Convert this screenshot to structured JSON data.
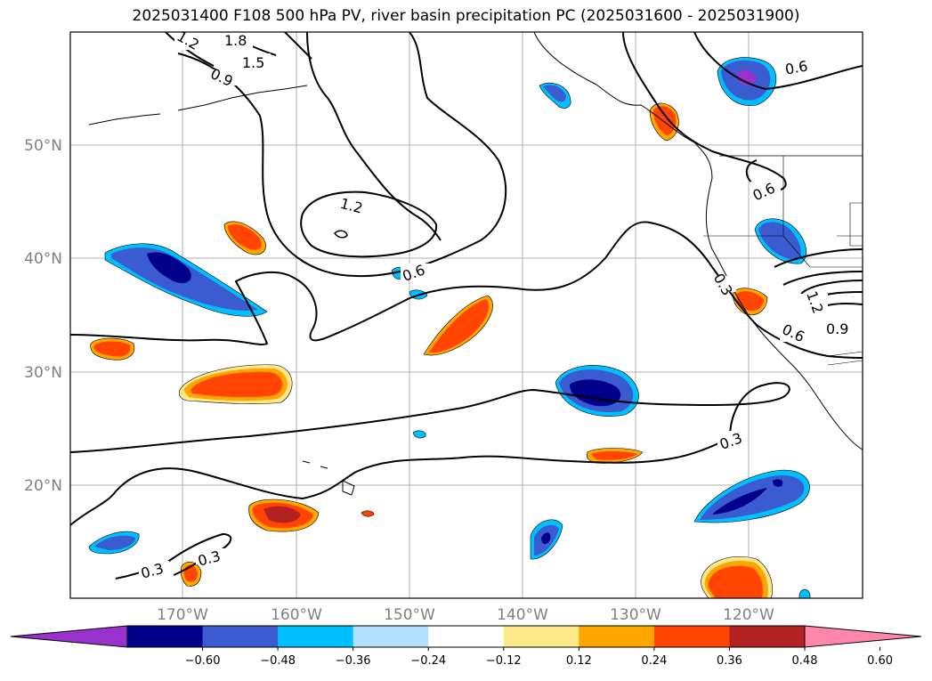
{
  "title": "2025031400 F108 500 hPa PV, river basin precipitation PC (2025031600 - 2025031900)",
  "axes": {
    "lat_ticks": [
      "50°N",
      "40°N",
      "30°N",
      "20°N"
    ],
    "lon_ticks": [
      "170°W",
      "160°W",
      "150°W",
      "140°W",
      "130°W",
      "120°W"
    ]
  },
  "contour_labels": [
    "1.2",
    "1.8",
    "1.5",
    "0.9",
    "1.2",
    "0.6",
    "0.6",
    "0.6",
    "0.3",
    "1.2",
    "0.9",
    "0.6",
    "0.3",
    "0.3",
    "0.3"
  ],
  "colorbar": {
    "colors": [
      "#9932cc",
      "#00008b",
      "#3b5bd1",
      "#00bfff",
      "#b0e2ff",
      "#ffffff",
      "#fde98a",
      "#ffa500",
      "#ff4500",
      "#b22222",
      "#ff88aa"
    ],
    "ticks": [
      "−0.60",
      "−0.48",
      "−0.36",
      "−0.24",
      "−0.12",
      "0.12",
      "0.24",
      "0.36",
      "0.48",
      "0.60"
    ]
  }
}
